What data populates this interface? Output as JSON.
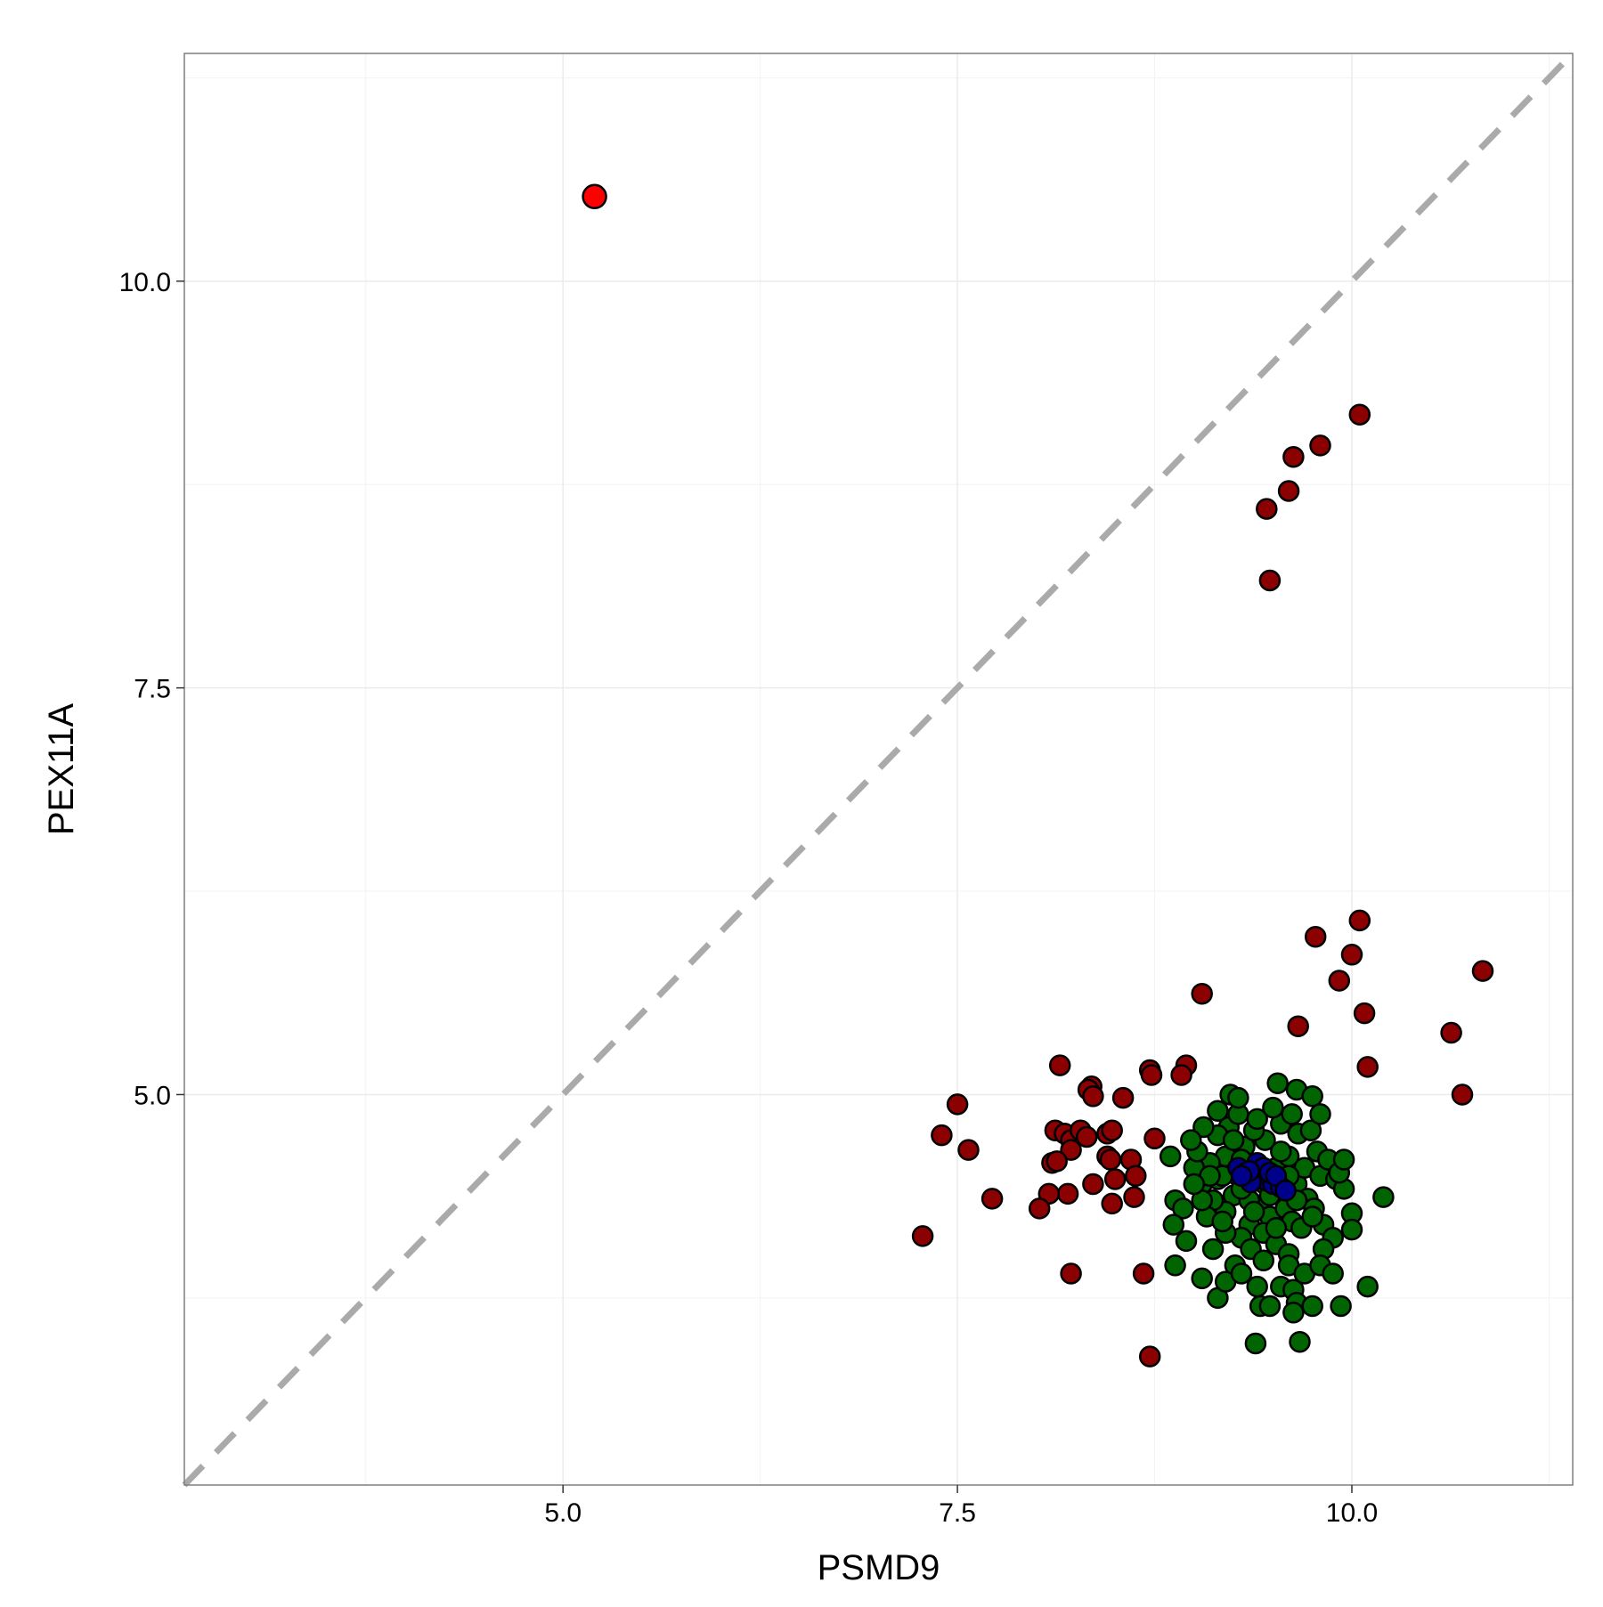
{
  "chart_data": {
    "type": "scatter",
    "xlabel": "PSMD9",
    "ylabel": "PEX11A",
    "xlim": [
      2.6,
      11.4
    ],
    "ylim": [
      2.6,
      11.4
    ],
    "x_ticks": [
      5.0,
      7.5,
      10.0
    ],
    "y_ticks": [
      5.0,
      7.5,
      10.0
    ],
    "x_tick_labels": [
      "5.0",
      "7.5",
      "10.0"
    ],
    "y_tick_labels": [
      "5.0",
      "7.5",
      "10.0"
    ],
    "x_minor_gridlines": [
      3.75,
      6.25,
      8.75,
      11.25
    ],
    "y_minor_gridlines": [
      3.75,
      6.25,
      8.75,
      11.25
    ],
    "grid": true,
    "reference_line": {
      "type": "identity",
      "style": "dashed",
      "color": "#aaaaaa"
    },
    "colors": {
      "highlight": "#ff0000",
      "outlier": "#8b0000",
      "normal": "#006400",
      "center": "#00008b",
      "outline": "#000000",
      "gridline": "#ebebeb",
      "panel_border": "#7f7f7f"
    },
    "series": [
      {
        "group": "highlight",
        "points": [
          [
            5.2,
            10.52
          ]
        ]
      },
      {
        "group": "outlier",
        "points": [
          [
            10.05,
            9.18
          ],
          [
            9.8,
            8.99
          ],
          [
            9.63,
            8.92
          ],
          [
            9.6,
            8.71
          ],
          [
            9.46,
            8.6
          ],
          [
            9.48,
            8.16
          ],
          [
            10.05,
            6.07
          ],
          [
            9.77,
            5.97
          ],
          [
            10.0,
            5.86
          ],
          [
            10.83,
            5.76
          ],
          [
            9.92,
            5.7
          ],
          [
            9.05,
            5.62
          ],
          [
            10.08,
            5.5
          ],
          [
            9.66,
            5.42
          ],
          [
            10.63,
            5.38
          ],
          [
            10.1,
            5.17
          ],
          [
            10.7,
            5.0
          ],
          [
            8.15,
            5.18
          ],
          [
            8.72,
            5.15
          ],
          [
            8.73,
            5.12
          ],
          [
            8.95,
            5.18
          ],
          [
            8.92,
            5.12
          ],
          [
            8.35,
            5.05
          ],
          [
            8.33,
            5.03
          ],
          [
            8.36,
            4.99
          ],
          [
            8.55,
            4.98
          ],
          [
            7.5,
            4.94
          ],
          [
            7.4,
            4.75
          ],
          [
            7.57,
            4.66
          ],
          [
            8.12,
            4.78
          ],
          [
            8.18,
            4.76
          ],
          [
            8.22,
            4.72
          ],
          [
            8.28,
            4.78
          ],
          [
            8.32,
            4.74
          ],
          [
            8.45,
            4.76
          ],
          [
            8.48,
            4.78
          ],
          [
            8.22,
            4.66
          ],
          [
            8.45,
            4.62
          ],
          [
            8.47,
            4.6
          ],
          [
            8.1,
            4.58
          ],
          [
            8.13,
            4.59
          ],
          [
            8.6,
            4.6
          ],
          [
            8.75,
            4.73
          ],
          [
            8.63,
            4.5
          ],
          [
            8.5,
            4.48
          ],
          [
            8.36,
            4.45
          ],
          [
            8.2,
            4.39
          ],
          [
            8.08,
            4.39
          ],
          [
            7.72,
            4.36
          ],
          [
            8.02,
            4.3
          ],
          [
            8.48,
            4.33
          ],
          [
            8.62,
            4.37
          ],
          [
            7.28,
            4.13
          ],
          [
            8.22,
            3.9
          ],
          [
            8.68,
            3.9
          ],
          [
            8.72,
            3.39
          ]
        ]
      },
      {
        "group": "normal",
        "points": [
          [
            9.32,
            4.68
          ],
          [
            9.45,
            4.72
          ],
          [
            9.2,
            4.62
          ],
          [
            9.52,
            4.55
          ],
          [
            9.6,
            4.62
          ],
          [
            9.38,
            4.78
          ],
          [
            9.28,
            4.5
          ],
          [
            9.55,
            4.4
          ],
          [
            9.42,
            4.32
          ],
          [
            9.25,
            4.38
          ],
          [
            9.65,
            4.45
          ],
          [
            9.7,
            4.55
          ],
          [
            9.15,
            4.48
          ],
          [
            9.1,
            4.58
          ],
          [
            9.48,
            4.25
          ],
          [
            9.35,
            4.2
          ],
          [
            9.58,
            4.3
          ],
          [
            9.2,
            4.28
          ],
          [
            9.3,
            4.12
          ],
          [
            9.44,
            4.15
          ],
          [
            9.62,
            4.22
          ],
          [
            9.72,
            4.36
          ],
          [
            9.12,
            4.35
          ],
          [
            9.05,
            4.45
          ],
          [
            9.4,
            4.85
          ],
          [
            9.22,
            4.8
          ],
          [
            9.55,
            4.82
          ],
          [
            9.66,
            4.76
          ],
          [
            9.78,
            4.65
          ],
          [
            9.8,
            4.5
          ],
          [
            9.76,
            4.3
          ],
          [
            9.68,
            4.18
          ],
          [
            9.52,
            4.08
          ],
          [
            9.36,
            4.05
          ],
          [
            9.2,
            4.15
          ],
          [
            9.08,
            4.25
          ],
          [
            9.0,
            4.55
          ],
          [
            9.02,
            4.65
          ],
          [
            9.15,
            4.75
          ],
          [
            9.28,
            4.88
          ],
          [
            9.5,
            4.92
          ],
          [
            9.62,
            4.88
          ],
          [
            9.74,
            4.78
          ],
          [
            9.85,
            4.6
          ],
          [
            9.9,
            4.48
          ],
          [
            9.82,
            4.2
          ],
          [
            9.6,
            4.02
          ],
          [
            9.44,
            3.98
          ],
          [
            9.26,
            3.95
          ],
          [
            9.12,
            4.05
          ],
          [
            9.35,
            4.35
          ],
          [
            9.45,
            4.45
          ],
          [
            9.3,
            4.6
          ],
          [
            9.55,
            4.65
          ],
          [
            9.25,
            4.72
          ],
          [
            9.48,
            4.38
          ],
          [
            9.38,
            4.28
          ],
          [
            9.18,
            4.5
          ],
          [
            9.6,
            4.5
          ],
          [
            9.65,
            4.35
          ],
          [
            9.23,
            5.0
          ],
          [
            9.28,
            4.98
          ],
          [
            9.53,
            5.07
          ],
          [
            9.65,
            5.03
          ],
          [
            9.75,
            4.99
          ],
          [
            9.8,
            4.88
          ],
          [
            9.15,
            4.9
          ],
          [
            9.06,
            4.8
          ],
          [
            8.98,
            4.72
          ],
          [
            8.85,
            4.62
          ],
          [
            9.95,
            4.42
          ],
          [
            9.92,
            4.52
          ],
          [
            10.0,
            4.27
          ],
          [
            10.0,
            4.17
          ],
          [
            9.88,
            4.12
          ],
          [
            9.82,
            4.05
          ],
          [
            8.88,
            4.35
          ],
          [
            8.93,
            4.3
          ],
          [
            8.87,
            4.2
          ],
          [
            8.95,
            4.1
          ],
          [
            8.88,
            3.95
          ],
          [
            9.05,
            3.87
          ],
          [
            9.15,
            3.75
          ],
          [
            9.2,
            3.85
          ],
          [
            9.3,
            3.9
          ],
          [
            9.4,
            3.82
          ],
          [
            9.42,
            3.7
          ],
          [
            9.48,
            3.7
          ],
          [
            9.55,
            3.82
          ],
          [
            9.6,
            3.95
          ],
          [
            9.63,
            3.8
          ],
          [
            9.65,
            3.72
          ],
          [
            9.63,
            3.66
          ],
          [
            9.75,
            3.7
          ],
          [
            9.7,
            3.9
          ],
          [
            9.8,
            3.95
          ],
          [
            9.88,
            3.9
          ],
          [
            9.93,
            3.7
          ],
          [
            10.1,
            3.82
          ],
          [
            10.2,
            4.37
          ],
          [
            9.39,
            3.47
          ],
          [
            9.67,
            3.48
          ],
          [
            9.1,
            4.5
          ],
          [
            9.05,
            4.35
          ],
          [
            9.0,
            4.45
          ],
          [
            9.95,
            4.6
          ],
          [
            9.75,
            4.25
          ],
          [
            9.3,
            4.42
          ],
          [
            9.18,
            4.22
          ],
          [
            9.52,
            4.18
          ]
        ]
      },
      {
        "group": "center",
        "points": [
          [
            9.28,
            4.55
          ],
          [
            9.33,
            4.52
          ],
          [
            9.38,
            4.5
          ],
          [
            9.42,
            4.49
          ],
          [
            9.46,
            4.47
          ],
          [
            9.5,
            4.45
          ],
          [
            9.55,
            4.43
          ],
          [
            9.4,
            4.58
          ],
          [
            9.44,
            4.55
          ],
          [
            9.36,
            4.46
          ],
          [
            9.48,
            4.52
          ],
          [
            9.52,
            4.5
          ],
          [
            9.35,
            4.53
          ],
          [
            9.58,
            4.41
          ],
          [
            9.3,
            4.5
          ]
        ]
      }
    ]
  }
}
